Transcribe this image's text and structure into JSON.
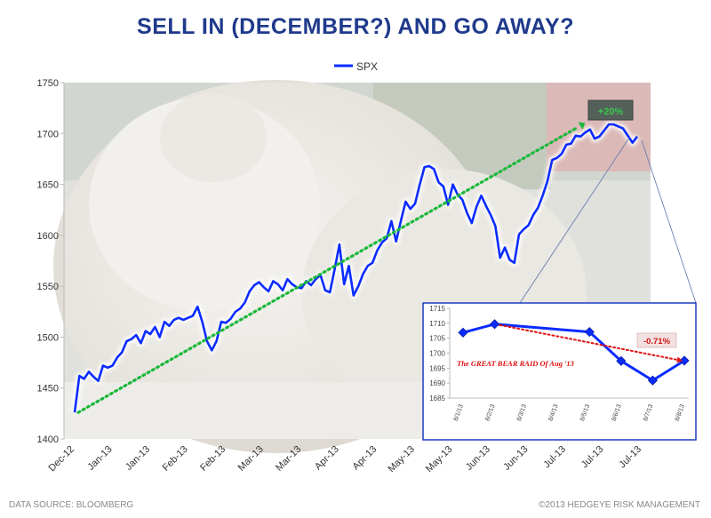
{
  "chart_data": [
    {
      "type": "line",
      "title": "SELL IN (DECEMBER?) AND GO AWAY?",
      "legend": [
        "SPX"
      ],
      "legend_position": "top-center",
      "ylim": [
        1400,
        1750
      ],
      "yticks": [
        1400,
        1450,
        1500,
        1550,
        1600,
        1650,
        1700,
        1750
      ],
      "xlabels": [
        "Dec-12",
        "Jan-13",
        "Jan-13",
        "Feb-13",
        "Feb-13",
        "Mar-13",
        "Mar-13",
        "Apr-13",
        "Apr-13",
        "May-13",
        "May-13",
        "Jun-13",
        "Jun-13",
        "Jul-13",
        "Jul-13",
        "Jul-13"
      ],
      "series": [
        {
          "name": "SPX",
          "values": [
            1426,
            1462,
            1459,
            1466,
            1461,
            1457,
            1472,
            1470,
            1472,
            1480,
            1485,
            1496,
            1498,
            1502,
            1494,
            1506,
            1503,
            1510,
            1500,
            1515,
            1511,
            1517,
            1519,
            1517,
            1519,
            1521,
            1530,
            1515,
            1496,
            1487,
            1496,
            1515,
            1514,
            1518,
            1525,
            1528,
            1534,
            1545,
            1551,
            1554,
            1549,
            1545,
            1555,
            1552,
            1546,
            1557,
            1552,
            1549,
            1548,
            1555,
            1551,
            1557,
            1561,
            1546,
            1544,
            1567,
            1591,
            1552,
            1570,
            1541,
            1550,
            1562,
            1570,
            1573,
            1585,
            1593,
            1597,
            1614,
            1594,
            1614,
            1633,
            1626,
            1631,
            1650,
            1667,
            1668,
            1665,
            1652,
            1648,
            1630,
            1650,
            1640,
            1635,
            1622,
            1612,
            1628,
            1639,
            1629,
            1620,
            1609,
            1578,
            1588,
            1576,
            1573,
            1601,
            1606,
            1610,
            1620,
            1627,
            1639,
            1653,
            1674,
            1676,
            1680,
            1689,
            1690,
            1698,
            1697,
            1701,
            1704,
            1695,
            1697,
            1703,
            1709,
            1709,
            1707,
            1705,
            1698,
            1691,
            1697
          ],
          "color": "#0b2cff"
        },
        {
          "name": "trend",
          "values": [
            1426,
            1705
          ],
          "color": "#19b83a",
          "style": "dotted"
        }
      ],
      "annotation": "+20%"
    },
    {
      "type": "line",
      "title": "The GREAT BEAR RAID Of Aug '13",
      "categories": [
        "8/1/13",
        "8/2/13",
        "8/3/13",
        "8/4/13",
        "8/5/13",
        "8/6/13",
        "8/7/13",
        "8/8/13"
      ],
      "ylim": [
        1685,
        1715
      ],
      "yticks": [
        1685,
        1690,
        1695,
        1700,
        1705,
        1710,
        1715
      ],
      "series": [
        {
          "name": "SPX",
          "x": [
            "8/1/13",
            "8/2/13",
            "8/5/13",
            "8/6/13",
            "8/7/13",
            "8/8/13"
          ],
          "values": [
            1706.9,
            1709.7,
            1707.1,
            1697.4,
            1690.9,
            1697.5
          ]
        }
      ],
      "annotation": "-0.71%"
    }
  ],
  "footer": {
    "source": "DATA SOURCE: BLOOMBERG",
    "copyright": "©2013 HEDGEYE RISK MANAGEMENT"
  }
}
